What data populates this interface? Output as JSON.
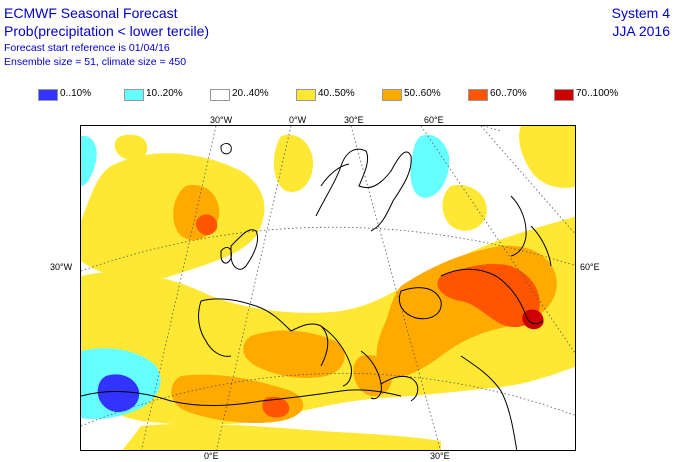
{
  "header": {
    "title": "ECMWF Seasonal Forecast",
    "subtitle": "Prob(precipitation < lower tercile)",
    "start_ref": "Forecast start reference is 01/04/16",
    "ensemble": "Ensemble size = 51, climate size = 450",
    "system": "System 4",
    "season": "JJA 2016"
  },
  "legend": [
    {
      "label": "0..10%",
      "color": "#3333ff"
    },
    {
      "label": "10..20%",
      "color": "#66ffff"
    },
    {
      "label": "20..40%",
      "color": "#ffffff"
    },
    {
      "label": "40..50%",
      "color": "#ffe833"
    },
    {
      "label": "50..60%",
      "color": "#ffaa00"
    },
    {
      "label": "60..70%",
      "color": "#ff5500"
    },
    {
      "label": "70..100%",
      "color": "#cc0000"
    }
  ],
  "graticule_labels": {
    "top": [
      "30°W",
      "0°W",
      "30°E",
      "60°E"
    ],
    "left": "30°W",
    "right": "60°E",
    "bottom": [
      "0°E",
      "30°E"
    ]
  }
}
